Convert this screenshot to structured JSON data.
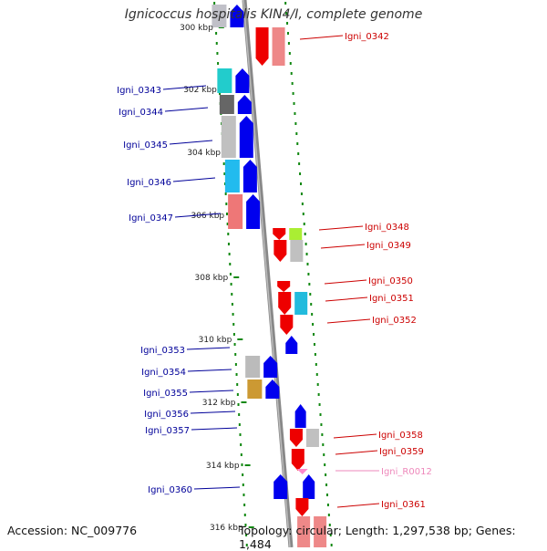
{
  "title": "Ignicoccus hospitalis KIN4/I, complete genome",
  "footer": {
    "accession": "Accession: NC_009776",
    "summary": "Topology: circular; Length: 1,297,538 bp; Genes: 1,484"
  },
  "colors": {
    "forward_gene": "#0000ee",
    "reverse_gene": "#ee0000",
    "rna_gene": "#ff88cc",
    "backbone": "#888888",
    "tick": "#118811",
    "forward_label": "#000099",
    "reverse_label": "#cc0000",
    "rna_label": "#ee88bb"
  },
  "ticks": [
    "300 kbp",
    "302 kbp",
    "304 kbp",
    "306 kbp",
    "308 kbp",
    "310 kbp",
    "312 kbp",
    "314 kbp",
    "316 kbp"
  ],
  "genes_forward": [
    "Igni_0343",
    "Igni_0344",
    "Igni_0345",
    "Igni_0346",
    "Igni_0347",
    "Igni_0353",
    "Igni_0354",
    "Igni_0355",
    "Igni_0356",
    "Igni_0357",
    "Igni_0360"
  ],
  "genes_reverse": [
    "Igni_0342",
    "Igni_0348",
    "Igni_0349",
    "Igni_0350",
    "Igni_0351",
    "Igni_0352",
    "Igni_0358",
    "Igni_0359",
    "Igni_0361"
  ],
  "genes_rna": [
    "Igni_R0012"
  ]
}
